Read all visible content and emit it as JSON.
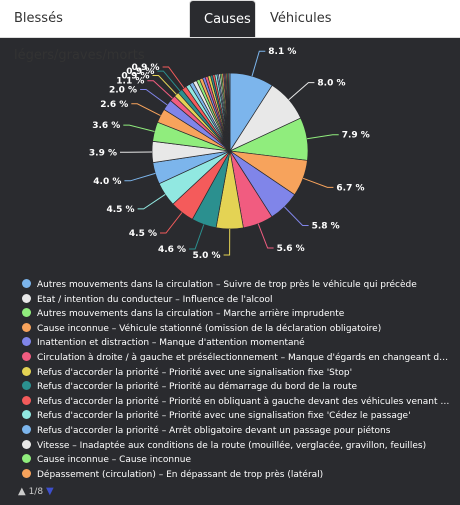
{
  "tabs": [
    {
      "label": "Blessés légers/graves/morts"
    },
    {
      "label": "Causes"
    },
    {
      "label": "Véhicules"
    }
  ],
  "chart_data": {
    "type": "pie",
    "slices": [
      {
        "label": "8.1 %",
        "value": 8.1,
        "color": "#7cb5ec"
      },
      {
        "label": "8.0 %",
        "value": 8.0,
        "color": "#e8e8e8"
      },
      {
        "label": "7.9 %",
        "value": 7.9,
        "color": "#90ed7d"
      },
      {
        "label": "6.7 %",
        "value": 6.7,
        "color": "#f7a35c"
      },
      {
        "label": "5.8 %",
        "value": 5.8,
        "color": "#8085e9"
      },
      {
        "label": "5.6 %",
        "value": 5.6,
        "color": "#f15c80"
      },
      {
        "label": "5.0 %",
        "value": 5.0,
        "color": "#e4d354"
      },
      {
        "label": "4.6 %",
        "value": 4.6,
        "color": "#2b908f"
      },
      {
        "label": "4.5 %",
        "value": 4.5,
        "color": "#f45b5b"
      },
      {
        "label": "4.5 %",
        "value": 4.5,
        "color": "#91e8e1"
      },
      {
        "label": "4.0 %",
        "value": 4.0,
        "color": "#7cb5ec"
      },
      {
        "label": "3.9 %",
        "value": 3.9,
        "color": "#e8e8e8"
      },
      {
        "label": "3.6 %",
        "value": 3.6,
        "color": "#90ed7d"
      },
      {
        "label": "2.6 %",
        "value": 2.6,
        "color": "#f7a35c"
      },
      {
        "label": "2.0 %",
        "value": 2.0,
        "color": "#8085e9"
      },
      {
        "label": "1.1 %",
        "value": 1.1,
        "color": "#f15c80"
      },
      {
        "label": "0.9 %",
        "value": 0.9,
        "color": "#e4d354"
      },
      {
        "label": "0.9 %",
        "value": 0.9,
        "color": "#2b908f"
      },
      {
        "label": "0.9 %",
        "value": 0.9,
        "color": "#f45b5b"
      },
      {
        "label": "",
        "value": 0.8,
        "color": "#91e8e1"
      },
      {
        "label": "",
        "value": 0.7,
        "color": "#7cb5ec"
      },
      {
        "label": "",
        "value": 0.7,
        "color": "#e8e8e8"
      },
      {
        "label": "",
        "value": 0.6,
        "color": "#90ed7d"
      },
      {
        "label": "",
        "value": 0.6,
        "color": "#f7a35c"
      },
      {
        "label": "",
        "value": 0.5,
        "color": "#8085e9"
      },
      {
        "label": "",
        "value": 0.5,
        "color": "#f15c80"
      },
      {
        "label": "",
        "value": 0.5,
        "color": "#e4d354"
      },
      {
        "label": "",
        "value": 0.4,
        "color": "#2b908f"
      },
      {
        "label": "",
        "value": 0.4,
        "color": "#f45b5b"
      },
      {
        "label": "",
        "value": 0.4,
        "color": "#91e8e1"
      },
      {
        "label": "",
        "value": 0.3,
        "color": "#7cb5ec"
      },
      {
        "label": "",
        "value": 0.3,
        "color": "#e8e8e8"
      },
      {
        "label": "",
        "value": 0.3,
        "color": "#90ed7d"
      },
      {
        "label": "",
        "value": 0.3,
        "color": "#f7a35c"
      },
      {
        "label": "",
        "value": 0.2,
        "color": "#8085e9"
      },
      {
        "label": "",
        "value": 0.2,
        "color": "#f15c80"
      },
      {
        "label": "",
        "value": 0.2,
        "color": "#e4d354"
      },
      {
        "label": "",
        "value": 0.2,
        "color": "#2b908f"
      },
      {
        "label": "",
        "value": 0.2,
        "color": "#f45b5b"
      },
      {
        "label": "",
        "value": 0.2,
        "color": "#91e8e1"
      }
    ]
  },
  "legend": {
    "items": [
      {
        "text": "Autres mouvements dans la circulation – Suivre de trop près le véhicule qui précède",
        "color": "#7cb5ec"
      },
      {
        "text": "Etat / intention du conducteur – Influence de l'alcool",
        "color": "#e8e8e8"
      },
      {
        "text": "Autres mouvements dans la circulation – Marche arrière imprudente",
        "color": "#90ed7d"
      },
      {
        "text": "Cause inconnue – Véhicule stationné (omission de la déclaration obligatoire)",
        "color": "#f7a35c"
      },
      {
        "text": "Inattention et distraction – Manque d'attention momentané",
        "color": "#8085e9"
      },
      {
        "text": "Circulation à droite / à gauche et présélectionnement – Manque d'égards en changeant de voie",
        "color": "#f15c80"
      },
      {
        "text": "Refus d'accorder la priorité – Priorité avec une signalisation fixe 'Stop'",
        "color": "#e4d354"
      },
      {
        "text": "Refus d'accorder la priorité – Priorité au démarrage du bord de la route",
        "color": "#2b908f"
      },
      {
        "text": "Refus d'accorder la priorité – Priorité en obliquant à gauche devant des véhicules venant en sens inverse",
        "color": "#f45b5b"
      },
      {
        "text": "Refus d'accorder la priorité – Priorité avec une signalisation fixe 'Cédez le passage'",
        "color": "#91e8e1"
      },
      {
        "text": "Refus d'accorder la priorité – Arrêt obligatoire devant un passage pour piétons",
        "color": "#7cb5ec"
      },
      {
        "text": "Vitesse – Inadaptée aux conditions de la route (mouillée, verglacée, gravillon, feuilles)",
        "color": "#e8e8e8"
      },
      {
        "text": "Cause inconnue – Cause inconnue",
        "color": "#90ed7d"
      },
      {
        "text": "Dépassement (circulation) – En dépassant de trop près (latéral)",
        "color": "#f7a35c"
      }
    ],
    "pager": "1/8"
  }
}
